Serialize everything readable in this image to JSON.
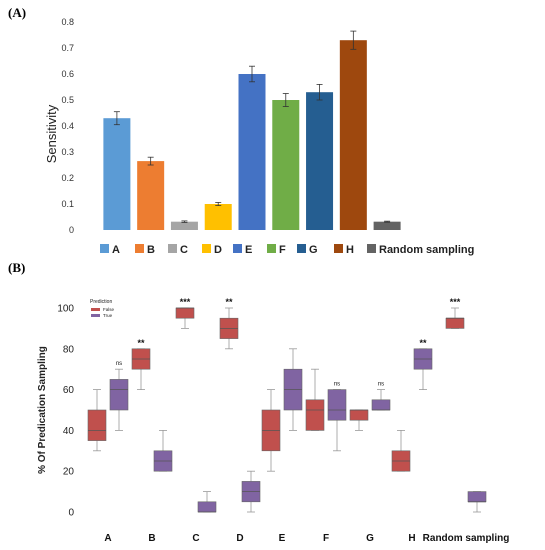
{
  "panels": {
    "a_label": "(A)",
    "b_label": "(B)"
  },
  "chart_data": [
    {
      "type": "bar",
      "ylabel": "Sensitivity",
      "ylim": [
        0,
        0.8
      ],
      "yticks": [
        "0",
        "0.1",
        "0.2",
        "0.3",
        "0.4",
        "0.5",
        "0.6",
        "0.7",
        "0.8"
      ],
      "grid": false,
      "legend_position": "bottom",
      "categories": [
        "A",
        "B",
        "C",
        "D",
        "E",
        "F",
        "G",
        "H",
        "Random sampling"
      ],
      "values": [
        0.43,
        0.265,
        0.032,
        0.1,
        0.6,
        0.5,
        0.53,
        0.73,
        0.032
      ],
      "errors": [
        0.025,
        0.015,
        0.003,
        0.006,
        0.03,
        0.025,
        0.03,
        0.035,
        0.002
      ],
      "colors": [
        "#5B9BD5",
        "#ED7D31",
        "#A5A5A5",
        "#FFC000",
        "#4472C4",
        "#70AD47",
        "#255E91",
        "#9E480E",
        "#636363"
      ]
    },
    {
      "type": "box",
      "ylabel": "% Of Predication Sampling",
      "ylim": [
        0,
        100
      ],
      "yticks": [
        "0",
        "20",
        "40",
        "60",
        "80",
        "100"
      ],
      "categories": [
        "A",
        "B",
        "C",
        "D",
        "E",
        "F",
        "G",
        "H",
        "Random sampling"
      ],
      "legend": {
        "title": "Prediction",
        "entries": [
          "False",
          "True"
        ],
        "position": "top-left"
      },
      "colors": {
        "False": "#C0504D",
        "True": "#8064A2"
      },
      "series": [
        {
          "name": "False",
          "boxes": [
            {
              "min": 30,
              "q1": 35,
              "median": 40,
              "q3": 50,
              "max": 60
            },
            {
              "min": 60,
              "q1": 70,
              "median": 75,
              "q3": 80,
              "max": 80
            },
            {
              "min": 90,
              "q1": 95,
              "median": 100,
              "q3": 100,
              "max": 100
            },
            {
              "min": 80,
              "q1": 85,
              "median": 90,
              "q3": 95,
              "max": 100
            },
            {
              "min": 20,
              "q1": 30,
              "median": 40,
              "q3": 50,
              "max": 60
            },
            {
              "min": 40,
              "q1": 40,
              "median": 50,
              "q3": 55,
              "max": 70
            },
            {
              "min": 40,
              "q1": 45,
              "median": 50,
              "q3": 50,
              "max": 50
            },
            {
              "min": 20,
              "q1": 20,
              "median": 25,
              "q3": 30,
              "max": 40
            },
            {
              "min": 90,
              "q1": 90,
              "median": 95,
              "q3": 95,
              "max": 100
            }
          ]
        },
        {
          "name": "True",
          "boxes": [
            {
              "min": 40,
              "q1": 50,
              "median": 60,
              "q3": 65,
              "max": 70
            },
            {
              "min": 20,
              "q1": 20,
              "median": 25,
              "q3": 30,
              "max": 40
            },
            {
              "min": 0,
              "q1": 0,
              "median": 0,
              "q3": 5,
              "max": 10
            },
            {
              "min": 0,
              "q1": 5,
              "median": 10,
              "q3": 15,
              "max": 20
            },
            {
              "min": 40,
              "q1": 50,
              "median": 60,
              "q3": 70,
              "max": 80
            },
            {
              "min": 30,
              "q1": 45,
              "median": 50,
              "q3": 60,
              "max": 60
            },
            {
              "min": 50,
              "q1": 50,
              "median": 50,
              "q3": 55,
              "max": 60
            },
            {
              "min": 60,
              "q1": 70,
              "median": 75,
              "q3": 80,
              "max": 80
            },
            {
              "min": 0,
              "q1": 5,
              "median": 5,
              "q3": 10,
              "max": 10
            }
          ]
        }
      ],
      "significance": [
        "ns",
        "**",
        "***",
        "**",
        "",
        "ns",
        "ns",
        "**",
        "***"
      ]
    }
  ]
}
